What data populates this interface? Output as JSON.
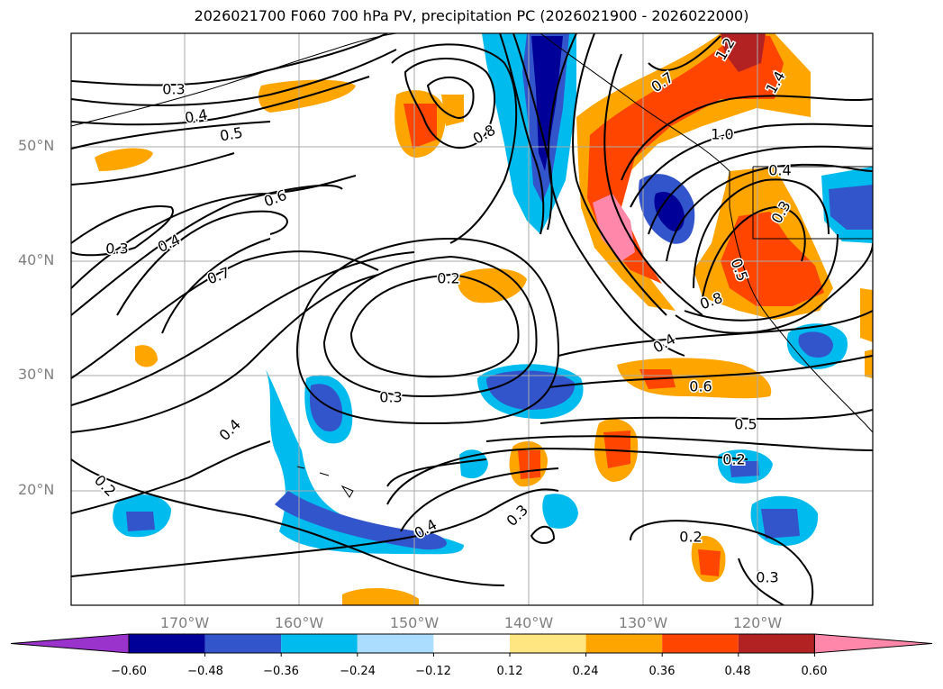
{
  "title": "2026021700 F060 700 hPa PV, precipitation PC (2026021900 - 2026022000)",
  "map": {
    "lat_labels": [
      "50°N",
      "40°N",
      "30°N",
      "20°N"
    ],
    "lon_labels": [
      "170°W",
      "160°W",
      "150°W",
      "140°W",
      "130°W",
      "120°W"
    ],
    "region": "North-East Pacific and western North America",
    "gridlines": true
  },
  "contour_labels": [
    {
      "text": "0.3",
      "region": "Gulf of Alaska west"
    },
    {
      "text": "0.4",
      "region": "Aleutian south"
    },
    {
      "text": "0.5",
      "region": "north-central Pacific"
    },
    {
      "text": "0.6",
      "region": "central Pacific"
    },
    {
      "text": "0.3",
      "region": "west Pacific ridge"
    },
    {
      "text": "0.4",
      "region": "west Pacific"
    },
    {
      "text": "0.7",
      "region": "mid Pacific trough"
    },
    {
      "text": "0.2",
      "region": "subtropical high"
    },
    {
      "text": "0.3",
      "region": "Hawaii north"
    },
    {
      "text": "0.4",
      "region": "subtropical west"
    },
    {
      "text": "0.2",
      "region": "south-west"
    },
    {
      "text": "0.8",
      "region": "eastern Pacific trough"
    },
    {
      "text": "0.7",
      "region": "Pacific Northwest"
    },
    {
      "text": "1.0",
      "region": "British Columbia"
    },
    {
      "text": "1.2",
      "region": "Alaska Panhandle"
    },
    {
      "text": "1.4",
      "region": "Canadian Rockies"
    },
    {
      "text": "0.4",
      "region": "Idaho"
    },
    {
      "text": "0.3",
      "region": "Nevada"
    },
    {
      "text": "0.5",
      "region": "California coast"
    },
    {
      "text": "0.8",
      "region": "offshore California"
    },
    {
      "text": "0.4",
      "region": "Baja offshore"
    },
    {
      "text": "0.6",
      "region": "subtropical east"
    },
    {
      "text": "0.5",
      "region": "Mexico Pacific"
    },
    {
      "text": "0.2",
      "region": "tropical east"
    },
    {
      "text": "0.3",
      "region": "tropical south"
    },
    {
      "text": "0.2",
      "region": "tropical south-east"
    },
    {
      "text": "0.3",
      "region": "tropical south-east"
    },
    {
      "text": "0.4",
      "region": "Hawaii south"
    }
  ],
  "colorbar": {
    "ticks": [
      "−0.60",
      "−0.48",
      "−0.36",
      "−0.24",
      "−0.12",
      "0.12",
      "0.24",
      "0.36",
      "0.48",
      "0.60"
    ],
    "colors": [
      "#9933cc",
      "#000099",
      "#3355cc",
      "#00bbee",
      "#aaddff",
      "#ffffff",
      "#ffe680",
      "#ffa500",
      "#ff4500",
      "#b22222",
      "#ff88aa"
    ],
    "extend": "both"
  }
}
